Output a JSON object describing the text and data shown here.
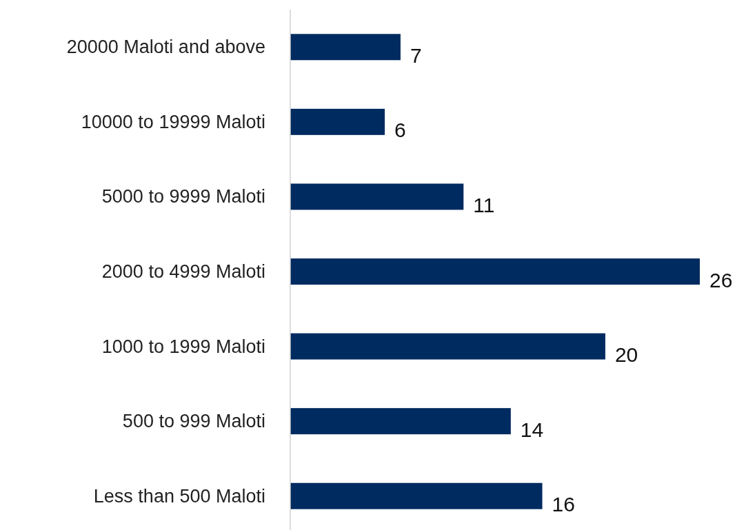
{
  "chart_data": {
    "type": "bar",
    "orientation": "horizontal",
    "categories": [
      "20000 Maloti and above",
      "10000 to 19999 Maloti",
      "5000 to 9999 Maloti",
      "2000 to 4999 Maloti",
      "1000 to 1999 Maloti",
      "500 to 999 Maloti",
      "Less than 500 Maloti"
    ],
    "values": [
      7,
      6,
      11,
      26,
      20,
      14,
      16
    ],
    "color": "#002b60",
    "data_labels": true
  }
}
